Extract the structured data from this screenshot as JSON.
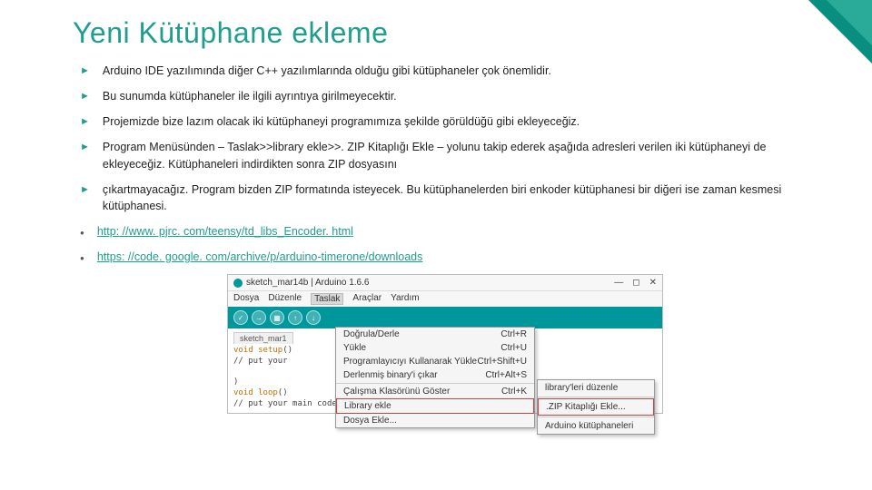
{
  "title": "Yeni Kütüphane ekleme",
  "bullets": [
    "Arduino IDE yazılımında diğer C++ yazılımlarında olduğu gibi kütüphaneler çok önemlidir.",
    "Bu sunumda kütüphaneler ile ilgili ayrıntıya girilmeyecektir.",
    "Projemizde bize lazım olacak iki kütüphaneyi programımıza şekilde görüldüğü gibi ekleyeceğiz.",
    "Program Menüsünden – Taslak>>library ekle>>. ZIP Kitaplığı Ekle – yolunu takip ederek aşağıda adresleri verilen iki kütüphaneyi de ekleyeceğiz. Kütüphaneleri indirdikten sonra ZIP dosyasını",
    "çıkartmayacağız. Program bizden ZIP formatında isteyecek. Bu kütüphanelerden biri enkoder kütüphanesi bir diğeri ise zaman kesmesi kütüphanesi."
  ],
  "links": [
    "http: //www. pjrc. com/teensy/td_libs_Encoder. html",
    "https: //code. google. com/archive/p/arduino-timerone/downloads"
  ],
  "ide": {
    "windowTitle": "sketch_mar14b | Arduino 1.6.6",
    "menus": [
      "Dosya",
      "Düzenle",
      "Taslak",
      "Araçlar",
      "Yardım"
    ],
    "tabName": "sketch_mar1",
    "code": {
      "l1a": "void",
      "l1b": "setup",
      "l2": "// put your",
      "l3": ")",
      "l4a": "void",
      "l4b": "loop",
      "l5": "// put your main code here, to run repeatedly:"
    },
    "dropdown": [
      {
        "label": "Doğrula/Derle",
        "shortcut": "Ctrl+R"
      },
      {
        "label": "Yükle",
        "shortcut": "Ctrl+U"
      },
      {
        "label": "Programlayıcıyı Kullanarak Yükle",
        "shortcut": "Ctrl+Shift+U"
      },
      {
        "label": "Derlenmiş binary'i çıkar",
        "shortcut": "Ctrl+Alt+S"
      },
      {
        "label": "Çalışma Klasörünü Göster",
        "shortcut": "Ctrl+K",
        "sepBefore": true
      },
      {
        "label": "Library ekle",
        "shortcut": "",
        "hl": true
      },
      {
        "label": "Dosya Ekle...",
        "shortcut": ""
      }
    ],
    "submenu": [
      {
        "label": "library'leri düzenle"
      },
      {
        "label": ".ZIP Kitaplığı Ekle...",
        "hl": true
      },
      {
        "label": "Arduino kütüphaneleri"
      }
    ]
  }
}
